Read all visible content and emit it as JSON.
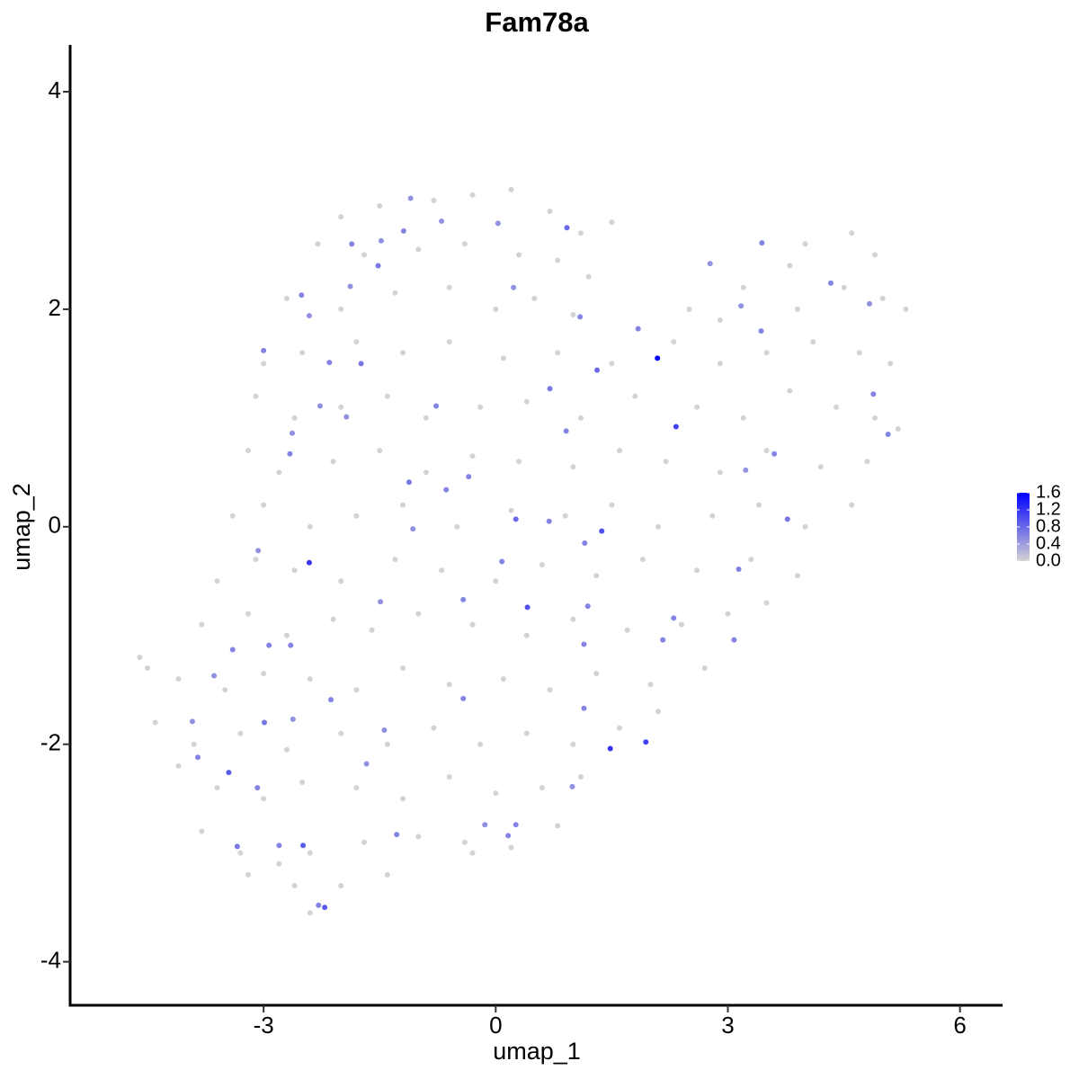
{
  "chart_data": {
    "type": "scatter",
    "title": "Fam78a",
    "xlabel": "umap_1",
    "ylabel": "umap_2",
    "xlim": [
      -5.5,
      6.55
    ],
    "ylim": [
      -4.4,
      4.43
    ],
    "xticks": [
      -3,
      0,
      3,
      6
    ],
    "yticks": [
      -4,
      -2,
      0,
      2,
      4
    ],
    "colorbar": {
      "low": "#d3d3d3",
      "high": "#0000ff",
      "lim": [
        0,
        1.6
      ],
      "ticks": [
        {
          "value": 0,
          "label": "0.0"
        },
        0.4,
        0.8,
        1.2,
        1.6
      ]
    },
    "x": [
      -2.0,
      -1.5,
      -0.8,
      -0.3,
      0.2,
      0.7,
      1.1,
      1.5,
      -2.3,
      -1.7,
      -1.0,
      -0.4,
      0.3,
      0.8,
      1.2,
      4.0,
      4.6,
      4.9,
      3.8,
      -2.7,
      -2.0,
      -1.3,
      -0.6,
      0.0,
      0.5,
      1.0,
      2.5,
      3.2,
      3.9,
      4.5,
      5.0,
      5.3,
      2.9,
      -3.0,
      -2.5,
      -1.8,
      -1.2,
      -0.6,
      0.1,
      0.8,
      1.5,
      2.3,
      2.9,
      3.5,
      4.1,
      4.7,
      5.1,
      -3.1,
      -2.6,
      -2.0,
      -1.4,
      -0.9,
      -0.2,
      0.4,
      1.1,
      1.8,
      2.6,
      3.2,
      3.8,
      4.4,
      4.9,
      -3.2,
      -2.8,
      -2.1,
      -1.5,
      -0.9,
      -0.3,
      0.3,
      1.0,
      1.6,
      2.2,
      2.9,
      3.5,
      4.2,
      4.8,
      5.2,
      -3.4,
      -3.0,
      -2.4,
      -1.8,
      -1.2,
      -0.5,
      0.2,
      0.9,
      1.5,
      2.1,
      2.8,
      3.4,
      4.0,
      4.6,
      -3.6,
      -3.1,
      -2.6,
      -2.0,
      -1.3,
      -0.7,
      0.0,
      0.6,
      1.3,
      1.9,
      2.6,
      3.3,
      3.9,
      -3.8,
      -3.2,
      -2.7,
      -2.1,
      -1.6,
      -1.0,
      -0.3,
      0.4,
      1.0,
      1.7,
      2.4,
      3.0,
      3.5,
      -4.6,
      -4.5,
      -4.1,
      -3.5,
      -3.0,
      -2.4,
      -1.8,
      -1.2,
      -0.6,
      0.1,
      0.7,
      1.3,
      2.0,
      2.7,
      -4.4,
      -3.9,
      -3.3,
      -2.7,
      -2.0,
      -1.4,
      -0.8,
      -0.2,
      0.4,
      1.0,
      1.6,
      2.1,
      -4.1,
      -3.6,
      -3.0,
      -2.5,
      -1.8,
      -1.2,
      -0.6,
      0.0,
      0.6,
      1.1,
      -3.8,
      -3.3,
      -2.8,
      -2.4,
      -1.7,
      -1.0,
      -0.4,
      0.2,
      0.8,
      -3.2,
      -2.6,
      -2.0,
      -1.4,
      -0.3,
      -2.4,
      -1.1,
      -0.7,
      -1.19,
      -1.86,
      -1.48,
      -1.52,
      -2.51,
      -1.88,
      -2.41,
      -3.0,
      -2.15,
      -1.74,
      -2.27,
      -1.93,
      -2.63,
      -2.66,
      -1.12,
      -0.64,
      0.26,
      -1.07,
      -2.41,
      -3.07,
      0.08,
      1.15,
      0.41,
      -0.42,
      -1.49,
      -2.93,
      -2.65,
      -3.64,
      -3.4,
      -2.99,
      -2.62,
      -2.13,
      -3.45,
      -3.08,
      -3.34,
      -2.49,
      -2.21,
      -2.29,
      -1.28,
      -1.44,
      0.16,
      -0.14,
      1.48,
      1.94,
      1.14,
      1.14,
      1.19,
      1.37,
      2.09,
      2.33,
      1.84,
      1.09,
      0.7,
      1.31,
      0.92,
      0.03,
      0.23,
      3.44,
      2.77,
      3.43,
      3.17,
      4.33,
      4.83,
      4.88,
      5.07,
      3.6,
      3.77,
      3.23,
      3.14,
      3.08,
      2.3,
      2.16,
      -0.35,
      -0.77,
      0.69,
      0.91,
      -0.42,
      -3.85,
      -3.92,
      -2.8,
      -1.67,
      0.26,
      0.99
    ],
    "y": [
      2.85,
      2.95,
      3.0,
      3.05,
      3.1,
      2.9,
      2.7,
      2.8,
      2.6,
      2.5,
      2.55,
      2.6,
      2.5,
      2.45,
      2.3,
      2.6,
      2.7,
      2.5,
      2.4,
      2.1,
      2.0,
      2.15,
      2.2,
      2.0,
      2.1,
      1.95,
      2.0,
      2.2,
      2.0,
      2.2,
      2.1,
      2.0,
      1.9,
      1.5,
      1.6,
      1.7,
      1.6,
      1.7,
      1.55,
      1.6,
      1.5,
      1.7,
      1.5,
      1.6,
      1.7,
      1.6,
      1.5,
      1.2,
      1.0,
      1.1,
      1.2,
      1.0,
      1.1,
      1.15,
      1.0,
      1.2,
      1.1,
      1.0,
      1.25,
      1.1,
      1.0,
      0.7,
      0.5,
      0.6,
      0.7,
      0.5,
      0.65,
      0.6,
      0.55,
      0.7,
      0.6,
      0.5,
      0.7,
      0.55,
      0.6,
      0.9,
      0.1,
      0.2,
      0.0,
      0.1,
      0.2,
      0.0,
      0.15,
      0.1,
      0.2,
      0.0,
      0.1,
      0.2,
      0.0,
      0.2,
      -0.5,
      -0.3,
      -0.4,
      -0.5,
      -0.3,
      -0.4,
      -0.5,
      -0.35,
      -0.45,
      -0.3,
      -0.4,
      -0.3,
      -0.45,
      -0.9,
      -0.8,
      -1.0,
      -0.85,
      -0.95,
      -0.8,
      -0.9,
      -1.0,
      -0.85,
      -0.95,
      -0.9,
      -0.8,
      -0.7,
      -1.2,
      -1.3,
      -1.4,
      -1.5,
      -1.35,
      -1.4,
      -1.5,
      -1.3,
      -1.45,
      -1.4,
      -1.5,
      -1.35,
      -1.45,
      -1.3,
      -1.8,
      -2.0,
      -1.9,
      -2.05,
      -1.9,
      -2.0,
      -1.85,
      -2.0,
      -1.9,
      -2.0,
      -1.85,
      -1.7,
      -2.2,
      -2.4,
      -2.5,
      -2.35,
      -2.4,
      -2.5,
      -2.3,
      -2.45,
      -2.4,
      -2.3,
      -2.8,
      -3.0,
      -3.1,
      -3.0,
      -2.9,
      -2.85,
      -2.9,
      -2.95,
      -2.75,
      -3.2,
      -3.3,
      -3.3,
      -3.2,
      -3.0,
      -3.55,
      3.02,
      2.81,
      2.72,
      2.6,
      2.63,
      2.4,
      2.13,
      2.21,
      1.94,
      1.62,
      1.51,
      1.5,
      1.11,
      1.01,
      0.86,
      0.67,
      0.41,
      0.34,
      0.07,
      -0.02,
      -0.33,
      -0.22,
      -0.32,
      -0.15,
      -0.74,
      -0.67,
      -0.69,
      -1.09,
      -1.09,
      -1.37,
      -1.13,
      -1.8,
      -1.77,
      -1.59,
      -2.26,
      -2.4,
      -2.94,
      -2.93,
      -3.5,
      -3.48,
      -2.83,
      -1.87,
      -2.84,
      -2.74,
      -2.04,
      -1.98,
      -1.67,
      -1.08,
      -0.73,
      -0.04,
      1.55,
      0.92,
      1.82,
      1.93,
      1.27,
      1.44,
      2.75,
      2.79,
      2.2,
      2.61,
      2.42,
      1.8,
      2.03,
      2.24,
      2.05,
      1.22,
      0.85,
      0.67,
      0.07,
      0.52,
      -0.39,
      -1.04,
      -0.84,
      -1.04,
      0.46,
      1.11,
      0.05,
      0.88,
      -1.58,
      -2.12,
      -1.79,
      -2.93,
      -2.18,
      -2.74,
      -2.39
    ],
    "values": [
      0,
      0,
      0,
      0,
      0,
      0,
      0,
      0,
      0,
      0,
      0,
      0,
      0,
      0,
      0,
      0,
      0,
      0,
      0,
      0,
      0,
      0,
      0,
      0,
      0,
      0,
      0,
      0,
      0,
      0,
      0,
      0,
      0,
      0,
      0,
      0,
      0,
      0,
      0,
      0,
      0,
      0,
      0,
      0,
      0,
      0,
      0,
      0,
      0,
      0,
      0,
      0,
      0,
      0,
      0,
      0,
      0,
      0,
      0,
      0,
      0,
      0,
      0,
      0,
      0,
      0,
      0,
      0,
      0,
      0,
      0,
      0,
      0,
      0,
      0,
      0,
      0,
      0,
      0,
      0,
      0,
      0,
      0,
      0,
      0,
      0,
      0,
      0,
      0,
      0,
      0,
      0,
      0,
      0,
      0,
      0,
      0,
      0,
      0,
      0,
      0,
      0,
      0,
      0,
      0,
      0,
      0,
      0,
      0,
      0,
      0,
      0,
      0,
      0,
      0,
      0,
      0,
      0,
      0,
      0,
      0,
      0,
      0,
      0,
      0,
      0,
      0,
      0,
      0,
      0,
      0,
      0,
      0,
      0,
      0,
      0,
      0,
      0,
      0,
      0,
      0,
      0,
      0,
      0,
      0,
      0,
      0,
      0,
      0,
      0,
      0,
      0,
      0,
      0,
      0,
      0,
      0,
      0,
      0,
      0,
      0,
      0,
      0,
      0,
      0,
      0,
      0,
      0.5,
      0.5,
      0.6,
      0.6,
      0.5,
      0.7,
      0.6,
      0.5,
      0.5,
      0.6,
      0.6,
      0.7,
      0.5,
      0.5,
      0.5,
      0.6,
      0.7,
      0.6,
      0.8,
      0.5,
      1.2,
      0.5,
      0.6,
      0.6,
      1.0,
      0.6,
      0.5,
      0.6,
      0.6,
      0.5,
      0.6,
      0.7,
      0.5,
      0.6,
      0.9,
      0.6,
      0.7,
      0.9,
      0.9,
      0.6,
      0.6,
      0.5,
      0.6,
      0.5,
      1.2,
      1.1,
      0.6,
      0.6,
      0.6,
      1.0,
      1.6,
      1.1,
      0.6,
      0.6,
      0.7,
      0.8,
      0.8,
      0.5,
      0.5,
      0.6,
      0.5,
      0.6,
      0.5,
      0.6,
      0.5,
      0.6,
      0.6,
      0.6,
      0.7,
      0.5,
      0.6,
      0.6,
      0.6,
      0.6,
      0.6,
      0.6,
      0.6,
      0.6,
      0.6,
      0.6,
      0.5,
      0.6,
      0.5,
      0.6,
      0.5
    ]
  }
}
